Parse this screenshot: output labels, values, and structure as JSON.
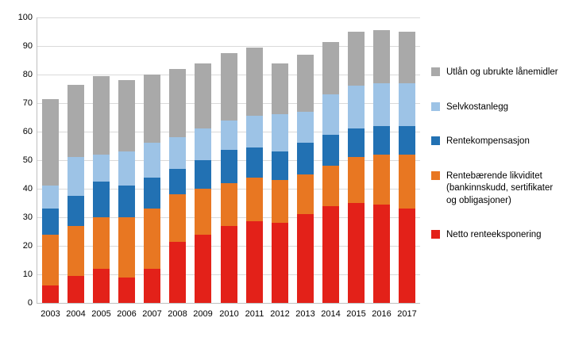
{
  "chart_data": {
    "type": "bar",
    "stacked": true,
    "title": "",
    "xlabel": "",
    "ylabel": "",
    "ylim": [
      0,
      100
    ],
    "ytick_step": 10,
    "grid": true,
    "legend_position": "right",
    "categories": [
      "2003",
      "2004",
      "2005",
      "2006",
      "2007",
      "2008",
      "2009",
      "2010",
      "2011",
      "2012",
      "2013",
      "2014",
      "2015",
      "2016",
      "2017"
    ],
    "series": [
      {
        "name": "Netto renteeksponering",
        "color": "#e32119",
        "values": [
          6,
          9.5,
          12,
          9,
          12,
          21.5,
          24,
          27,
          28.5,
          28,
          31,
          34,
          35,
          34.5,
          33
        ]
      },
      {
        "name": "Rentebærende likviditet\n(bankinnskudd, sertifikater\nog obligasjoner)",
        "color": "#e87722",
        "values": [
          18,
          17.5,
          18,
          21,
          21,
          16.5,
          16,
          15,
          15.5,
          15,
          14,
          14,
          16,
          17.5,
          19
        ]
      },
      {
        "name": "Rentekompensasjon",
        "color": "#2271b3",
        "values": [
          9,
          10.5,
          12.5,
          11,
          11,
          9,
          10,
          11.5,
          10.5,
          10,
          11,
          11,
          10,
          10,
          10
        ]
      },
      {
        "name": "Selvkostanlegg",
        "color": "#9dc3e6",
        "values": [
          8,
          13.5,
          9.5,
          12,
          12,
          11,
          11,
          10.5,
          11,
          13,
          11,
          14,
          15,
          15,
          15
        ]
      },
      {
        "name": "Utlån og ubrukte lånemidler",
        "color": "#a9a9a9",
        "values": [
          30.5,
          25.5,
          27.5,
          25,
          24,
          24,
          23,
          23.5,
          24,
          18,
          20,
          18.5,
          19,
          18.5,
          18
        ]
      }
    ]
  }
}
